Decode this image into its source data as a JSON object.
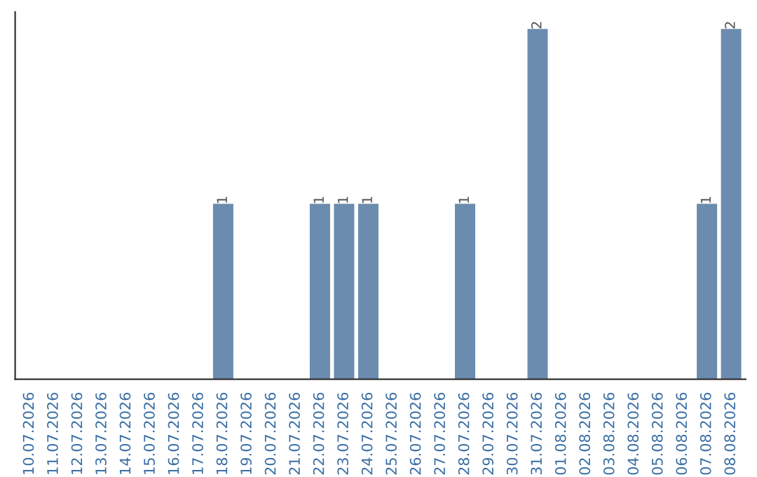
{
  "chart_data": {
    "type": "bar",
    "categories": [
      "10.07.2026",
      "11.07.2026",
      "12.07.2026",
      "13.07.2026",
      "14.07.2026",
      "15.07.2026",
      "16.07.2026",
      "17.07.2026",
      "18.07.2026",
      "19.07.2026",
      "20.07.2026",
      "21.07.2026",
      "22.07.2026",
      "23.07.2026",
      "24.07.2026",
      "25.07.2026",
      "26.07.2026",
      "27.07.2026",
      "28.07.2026",
      "29.07.2026",
      "30.07.2026",
      "31.07.2026",
      "01.08.2026",
      "02.08.2026",
      "03.08.2026",
      "04.08.2026",
      "05.08.2026",
      "06.08.2026",
      "07.08.2026",
      "08.08.2026"
    ],
    "values": [
      0,
      0,
      0,
      0,
      0,
      0,
      0,
      0,
      1,
      0,
      0,
      0,
      1,
      1,
      1,
      0,
      0,
      0,
      1,
      0,
      0,
      2,
      0,
      0,
      0,
      0,
      0,
      0,
      1,
      2
    ],
    "value_labels": [
      null,
      null,
      null,
      null,
      null,
      null,
      null,
      null,
      "1",
      null,
      null,
      null,
      "1",
      "1",
      "1",
      null,
      null,
      null,
      "1",
      null,
      null,
      "2",
      null,
      null,
      null,
      null,
      null,
      null,
      "1",
      "2"
    ],
    "color": "#6b8cae",
    "grid": false,
    "legend": false
  }
}
